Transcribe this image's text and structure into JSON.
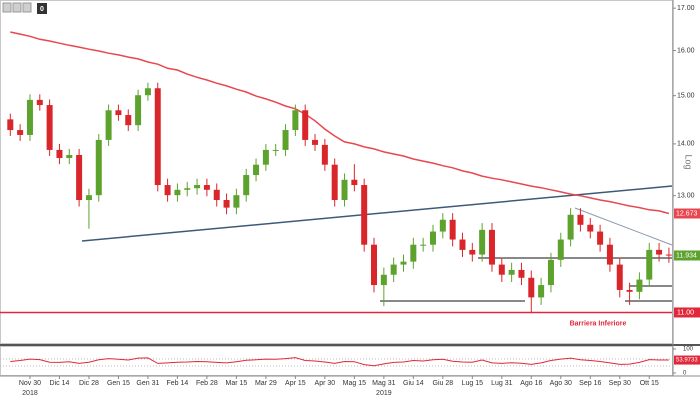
{
  "chart_data": {
    "type": "candlestick",
    "toolbar_counter": "0",
    "axis_label": "Log",
    "log_scale": true,
    "ylim": [
      10.53,
      17.2
    ],
    "yticks": [
      {
        "value": 17,
        "label": "17.00"
      },
      {
        "value": 16,
        "label": "16.00"
      },
      {
        "value": 15,
        "label": "15.00"
      },
      {
        "value": 14,
        "label": "14.00"
      },
      {
        "value": 13,
        "label": "13.00"
      }
    ],
    "up_color": "#5ea22e",
    "down_color": "#d9262b",
    "categories": [
      null,
      null,
      "Nov 30",
      null,
      null,
      "Dic 14",
      null,
      null,
      "Dic 28",
      null,
      null,
      "Gen 15",
      null,
      null,
      "Gen 31",
      null,
      null,
      "Feb 14",
      null,
      null,
      "Feb 28",
      null,
      null,
      "Mar 15",
      null,
      null,
      "Mar 29",
      null,
      null,
      "Apr 15",
      null,
      null,
      "Apr 30",
      null,
      null,
      "Mag 15",
      null,
      null,
      "Mag 31",
      null,
      null,
      "Giu 14",
      null,
      null,
      "Giu 28",
      null,
      null,
      "Lug 15",
      null,
      null,
      "Lug 31",
      null,
      null,
      "Ago 16",
      null,
      null,
      "Ago 30",
      null,
      null,
      "Sep 16",
      null,
      null,
      "Sep 30",
      null,
      null,
      "Ott 15",
      null,
      null
    ],
    "x_years": [
      null,
      null,
      "2018",
      null,
      null,
      null,
      null,
      null,
      null,
      null,
      null,
      null,
      null,
      null,
      null,
      null,
      null,
      null,
      null,
      null,
      null,
      null,
      null,
      null,
      null,
      null,
      null,
      null,
      null,
      null,
      null,
      null,
      null,
      null,
      null,
      null,
      null,
      null,
      "2019",
      null,
      null,
      null,
      null,
      null,
      null,
      null,
      null,
      null,
      null,
      null,
      null,
      null,
      null,
      null,
      null,
      null,
      null,
      null,
      null,
      null,
      null,
      null,
      null,
      null,
      null,
      null,
      null,
      null
    ],
    "open": [
      14.5,
      14.28,
      14.18,
      14.91,
      14.8,
      13.88,
      13.72,
      13.78,
      12.92,
      13.01,
      14.08,
      14.69,
      14.59,
      14.38,
      15.01,
      15.16,
      13.2,
      13.01,
      13.11,
      13.14,
      13.2,
      13.11,
      12.92,
      12.78,
      13.01,
      13.39,
      13.59,
      13.88,
      13.88,
      14.28,
      14.69,
      14.08,
      13.98,
      13.59,
      12.92,
      13.3,
      13.2,
      12.12,
      11.44,
      11.61,
      11.78,
      11.83,
      12.12,
      12.12,
      12.35,
      12.56,
      12.21,
      12.03,
      11.95,
      12.38,
      11.78,
      11.61,
      11.69,
      11.56,
      11.24,
      11.44,
      11.86,
      12.21,
      12.65,
      12.47,
      12.35,
      12.12,
      11.78,
      11.36,
      11.33,
      11.53,
      12.03,
      11.95
    ],
    "high": [
      14.62,
      14.4,
      15.03,
      15.03,
      14.92,
      14.0,
      13.9,
      13.9,
      13.13,
      14.2,
      14.81,
      14.81,
      14.71,
      15.13,
      15.28,
      15.28,
      13.32,
      13.23,
      13.26,
      13.32,
      13.32,
      13.23,
      13.04,
      13.13,
      13.51,
      13.71,
      14.0,
      14.0,
      14.4,
      14.81,
      14.81,
      14.2,
      14.1,
      13.71,
      13.42,
      13.6,
      13.32,
      12.24,
      11.73,
      11.9,
      11.95,
      12.24,
      12.24,
      12.47,
      12.68,
      12.68,
      12.33,
      12.15,
      12.5,
      12.5,
      11.9,
      11.81,
      11.81,
      11.68,
      11.56,
      11.98,
      12.33,
      12.77,
      12.77,
      12.59,
      12.47,
      12.24,
      11.9,
      11.48,
      11.65,
      12.15,
      12.15,
      12.07
    ],
    "low": [
      14.16,
      14.06,
      14.06,
      14.68,
      13.76,
      13.6,
      13.6,
      12.8,
      12.4,
      12.89,
      13.96,
      14.47,
      14.26,
      14.26,
      14.89,
      13.08,
      12.89,
      12.89,
      12.99,
      13.02,
      12.99,
      12.8,
      12.66,
      12.66,
      12.89,
      13.27,
      13.47,
      13.76,
      13.76,
      14.16,
      13.96,
      13.86,
      13.47,
      12.8,
      12.8,
      13.08,
      12.0,
      11.32,
      11.1,
      11.49,
      11.66,
      11.71,
      12.0,
      12.0,
      12.23,
      12.09,
      11.91,
      11.83,
      11.83,
      11.66,
      11.49,
      11.49,
      11.44,
      11.0,
      11.12,
      11.32,
      11.74,
      12.09,
      12.35,
      12.23,
      12.0,
      11.66,
      11.24,
      11.12,
      11.21,
      11.41,
      11.83,
      11.81
    ],
    "close": [
      14.28,
      14.18,
      14.91,
      14.8,
      13.88,
      13.72,
      13.78,
      12.92,
      13.01,
      14.08,
      14.69,
      14.59,
      14.38,
      15.01,
      15.16,
      13.2,
      13.01,
      13.11,
      13.14,
      13.2,
      13.11,
      12.92,
      12.78,
      13.01,
      13.39,
      13.59,
      13.88,
      13.88,
      14.28,
      14.69,
      14.08,
      13.98,
      13.59,
      12.92,
      13.3,
      13.2,
      12.12,
      11.44,
      11.61,
      11.78,
      11.83,
      12.12,
      12.12,
      12.35,
      12.56,
      12.21,
      12.03,
      11.95,
      12.38,
      11.78,
      11.61,
      11.69,
      11.56,
      11.24,
      11.44,
      11.86,
      12.21,
      12.65,
      12.47,
      12.35,
      12.12,
      11.78,
      11.36,
      11.33,
      11.53,
      12.03,
      11.95,
      11.934
    ],
    "last_price_color": "#5ea22e",
    "moving_average": {
      "color": "#e8474f",
      "values": [
        16.43,
        16.38,
        16.33,
        16.26,
        16.22,
        16.17,
        16.12,
        16.08,
        16.03,
        15.99,
        15.94,
        15.9,
        15.85,
        15.81,
        15.74,
        15.69,
        15.6,
        15.56,
        15.47,
        15.4,
        15.34,
        15.27,
        15.21,
        15.14,
        15.08,
        14.99,
        14.93,
        14.86,
        14.78,
        14.72,
        14.61,
        14.47,
        14.3,
        14.16,
        14.04,
        14.0,
        13.94,
        13.9,
        13.84,
        13.8,
        13.76,
        13.7,
        13.66,
        13.62,
        13.57,
        13.53,
        13.47,
        13.43,
        13.37,
        13.33,
        13.3,
        13.26,
        13.22,
        13.18,
        13.15,
        13.11,
        13.07,
        13.03,
        13.0,
        12.96,
        12.92,
        12.89,
        12.85,
        12.81,
        12.78,
        12.74,
        12.72,
        12.673
      ]
    },
    "barrier": {
      "value": 11,
      "label": "11.00",
      "text": "Barriera Inferiore",
      "color": "#e0283a"
    },
    "oscillator": {
      "color": "#e0283a",
      "ylim": [
        0,
        100
      ],
      "yticks": [
        0,
        100
      ],
      "values": [
        48,
        52,
        58,
        56,
        45,
        44,
        47,
        40,
        45,
        55,
        60,
        57,
        54,
        62,
        63,
        40,
        42,
        45,
        46,
        48,
        47,
        44,
        42,
        47,
        53,
        55,
        58,
        57,
        60,
        64,
        52,
        50,
        46,
        40,
        48,
        47,
        35,
        30,
        38,
        44,
        46,
        52,
        50,
        55,
        57,
        49,
        46,
        45,
        54,
        42,
        40,
        43,
        41,
        36,
        42,
        52,
        58,
        62,
        55,
        52,
        48,
        42,
        36,
        37,
        44,
        56,
        54,
        53.9733
      ]
    }
  }
}
